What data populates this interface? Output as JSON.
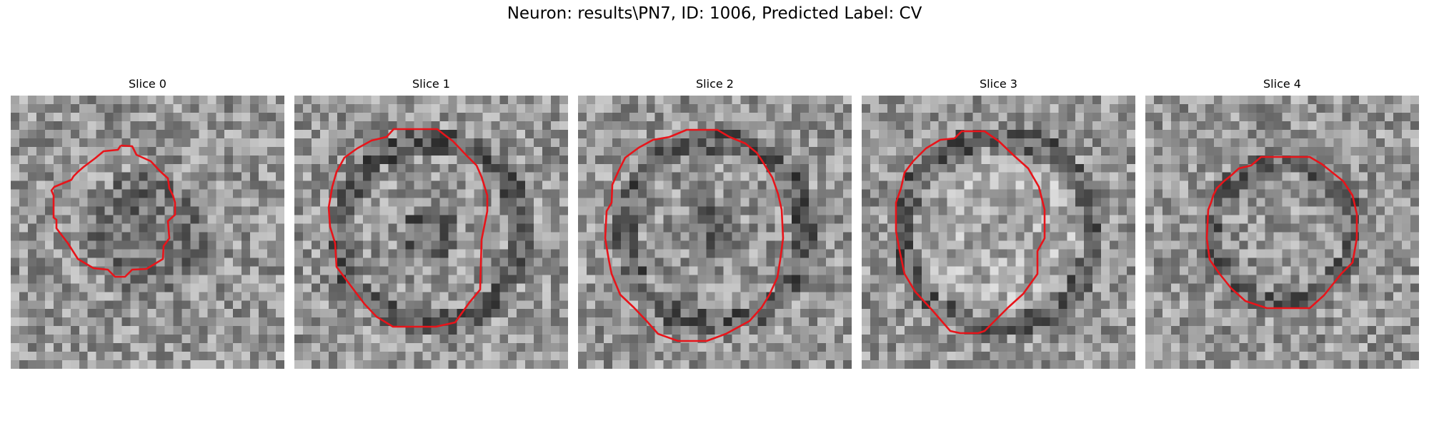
{
  "figure": {
    "title": "Neuron: results\\PN7, ID: 1006, Predicted Label: CV"
  },
  "slices": [
    {
      "title": "Slice 0",
      "shape": "irregular",
      "inner": "dark"
    },
    {
      "title": "Slice 1",
      "shape": "octagon",
      "inner": "ring"
    },
    {
      "title": "Slice 2",
      "shape": "circle",
      "inner": "ring"
    },
    {
      "title": "Slice 3",
      "shape": "octagon",
      "inner": "bright"
    },
    {
      "title": "Slice 4",
      "shape": "octagon",
      "inner": "medium"
    }
  ],
  "colors": {
    "contour": "#e8141a",
    "background": "#ffffff"
  }
}
